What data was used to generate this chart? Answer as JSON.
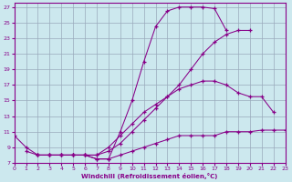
{
  "xlabel": "Windchill (Refroidissement éolien,°C)",
  "bg_color": "#cce8ee",
  "grid_color": "#99aabb",
  "line_color": "#880088",
  "marker": "+",
  "xlim": [
    0,
    23
  ],
  "ylim": [
    7,
    27.5
  ],
  "xticks": [
    0,
    1,
    2,
    3,
    4,
    5,
    6,
    7,
    8,
    9,
    10,
    11,
    12,
    13,
    14,
    15,
    16,
    17,
    18,
    19,
    20,
    21,
    22,
    23
  ],
  "yticks": [
    7,
    9,
    11,
    13,
    15,
    17,
    19,
    21,
    23,
    25,
    27
  ],
  "curves": [
    {
      "x": [
        0,
        1,
        2,
        3,
        4,
        5,
        6,
        7,
        8,
        9,
        10,
        11,
        12,
        13,
        14,
        15,
        16,
        17,
        18
      ],
      "y": [
        10.5,
        9.0,
        8.0,
        8.0,
        8.0,
        8.0,
        8.0,
        7.5,
        7.5,
        11.0,
        15.0,
        20.0,
        24.5,
        26.5,
        27.0,
        27.0,
        27.0,
        26.8,
        24.0
      ]
    },
    {
      "x": [
        1,
        2,
        3,
        4,
        5,
        6,
        7,
        8,
        9,
        10,
        11,
        12,
        13,
        14,
        15,
        16,
        17,
        18,
        19,
        20
      ],
      "y": [
        8.5,
        8.0,
        8.0,
        8.0,
        8.0,
        8.0,
        8.0,
        8.5,
        9.5,
        11.0,
        12.5,
        14.0,
        15.5,
        17.0,
        19.0,
        21.0,
        22.5,
        23.5,
        24.0,
        24.0
      ]
    },
    {
      "x": [
        2,
        3,
        4,
        5,
        6,
        7,
        8,
        9,
        10,
        11,
        12,
        13,
        14,
        15,
        16,
        17,
        18,
        19,
        20,
        21,
        22
      ],
      "y": [
        8.0,
        8.0,
        8.0,
        8.0,
        8.0,
        8.0,
        9.0,
        10.5,
        12.0,
        13.5,
        14.5,
        15.5,
        16.5,
        17.0,
        17.5,
        17.5,
        17.0,
        16.0,
        15.5,
        15.5,
        13.5
      ]
    },
    {
      "x": [
        2,
        3,
        4,
        5,
        6,
        7,
        8,
        9,
        10,
        11,
        12,
        13,
        14,
        15,
        16,
        17,
        18,
        19,
        20,
        21,
        22,
        23
      ],
      "y": [
        8.0,
        8.0,
        8.0,
        8.0,
        8.0,
        7.5,
        7.5,
        8.0,
        8.5,
        9.0,
        9.5,
        10.0,
        10.5,
        10.5,
        10.5,
        10.5,
        11.0,
        11.0,
        11.0,
        11.2,
        11.2,
        11.2
      ]
    }
  ]
}
